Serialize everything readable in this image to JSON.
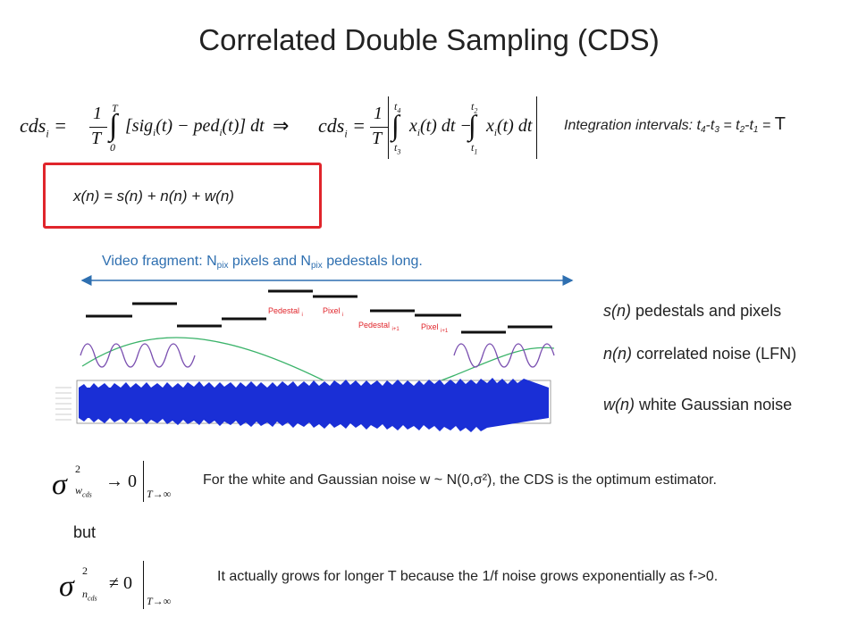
{
  "title": "Correlated Double Sampling (CDS)",
  "formula": {
    "lhs": "cds",
    "sub_i": "i",
    "frac_num": "1",
    "frac_den": "T",
    "upper_T": "T",
    "lower_0": "0",
    "integrand1": "[sig",
    "integrand1b": "(t) − ped",
    "integrand1c": "(t)] dt",
    "arrow": "⇒",
    "t1": "t",
    "t2": "t",
    "t3": "t",
    "integrand2a": "x",
    "integrand2b": "(t) dt −",
    "integrand2c": "(t) dt"
  },
  "intervals": {
    "label": "Integration intervals: t",
    "s4": "4",
    "m1": "-t",
    "s3": "3",
    "m2": " = t",
    "s2": "2",
    "m3": "-t",
    "s1": "1",
    "m4": " = ",
    "T": "T"
  },
  "signal_model": "x(n) = s(n) + n(n) + w(n)",
  "video": {
    "prefix": "Video fragment:   N",
    "pix1": "pix",
    "mid": " pixels and N",
    "pix2": "pix",
    "suffix": " pedestals long."
  },
  "waveform_labels": {
    "pedestal_i": "Pedestal",
    "pedestal_i_sub": "i",
    "pixel_i": "Pixel",
    "pixel_i_sub": "i",
    "pedestal_i1": "Pedestal",
    "pedestal_i1_sub": "i+1",
    "pixel_i1": "Pixel",
    "pixel_i1_sub": "i+1"
  },
  "legend": {
    "s": {
      "sym": "s(n)",
      "text": " pedestals and pixels"
    },
    "n": {
      "sym": "n(n)",
      "text": " correlated noise (LFN)"
    },
    "w": {
      "sym": "w(n)",
      "text": " white Gaussian noise"
    }
  },
  "sigma1": {
    "sigma": "σ",
    "sup": "2",
    "sub": "w",
    "subsub": "cds",
    "rel": "→ 0",
    "limit": "T→∞"
  },
  "note1": "For the white and Gaussian noise w ~ N(0,σ²), the CDS is the optimum estimator.",
  "but": "but",
  "sigma2": {
    "sigma": "σ",
    "sup": "2",
    "sub": "n",
    "subsub": "cds",
    "rel": "≠ 0",
    "limit": "T→∞"
  },
  "note2": "It actually grows for longer T because the 1/f noise grows exponentially as f->0.",
  "colors": {
    "accent_red": "#e0252b",
    "blue": "#2e6fb0",
    "noise_blue": "#1a2fd6",
    "green": "#3bb36a",
    "purple": "#7a4fb0"
  }
}
